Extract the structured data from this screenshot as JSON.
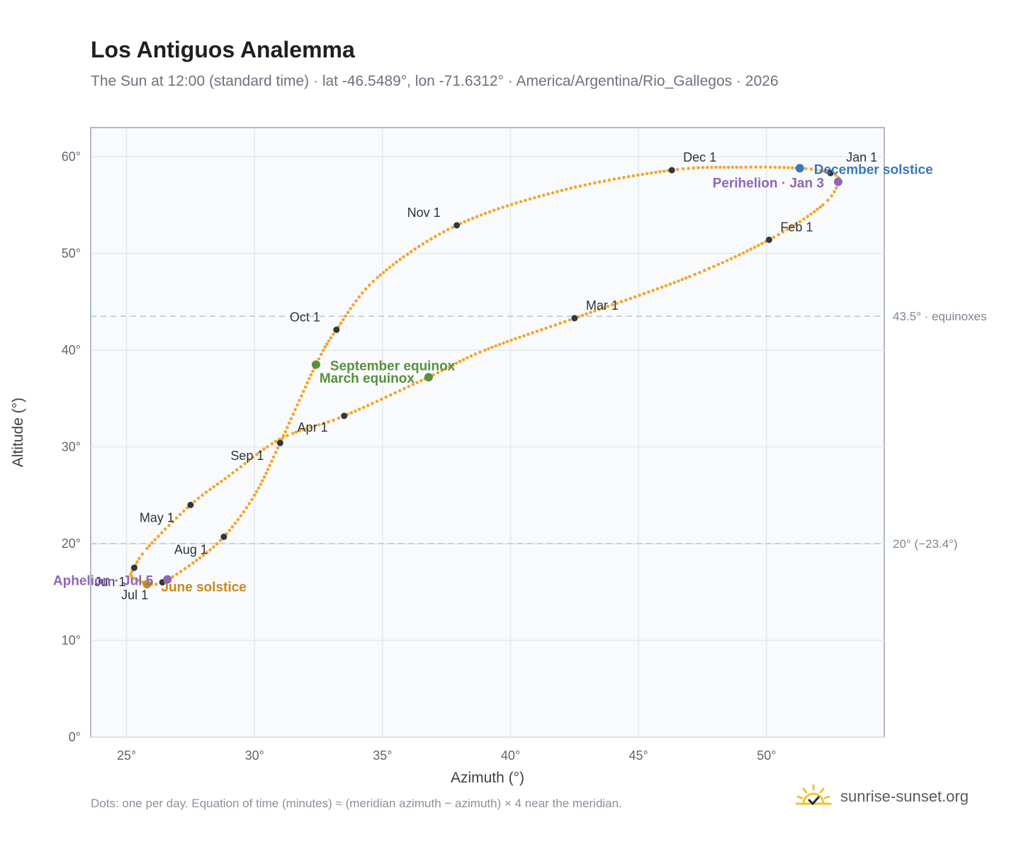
{
  "title": "Los Antiguos Analemma",
  "subtitle": "The Sun at 12:00 (standard time) · lat -46.5489°, lon -71.6312° · America/Argentina/Rio_Gallegos · 2026",
  "footnote": "Dots: one per day. Equation of time (minutes) ≈ (meridian azimuth − azimuth) × 4 near the meridian.",
  "brand": {
    "name": "sunrise-sunset.org",
    "icon": "sun-check-icon"
  },
  "colors": {
    "curve": "#f0a830",
    "month_point": "#2f3640",
    "equinox": "#5a8f3c",
    "december_solstice": "#3a78b8",
    "june_solstice": "#c98a1b",
    "perihelion_aphelion": "#8e67b8",
    "plot_bg": "#f8fafc",
    "grid": "#e3e8ee",
    "reference_line": "#b9c6d2"
  },
  "chart_data": {
    "type": "scatter",
    "xlabel": "Azimuth (°)",
    "ylabel": "Altitude (°)",
    "xlim": [
      23.6,
      54.6
    ],
    "ylim": [
      0,
      63
    ],
    "xticks": [
      25,
      30,
      35,
      40,
      45,
      50
    ],
    "yticks": [
      0,
      10,
      20,
      30,
      40,
      50,
      60
    ],
    "tick_suffix": "°",
    "grid": true,
    "reference_lines": [
      {
        "y": 43.5,
        "label": "43.5° · equinoxes"
      },
      {
        "y": 20,
        "label": "20° (−23.4°)"
      }
    ],
    "series": [
      {
        "x": [
          52.5,
          52.8,
          52.2,
          50.1,
          47.0,
          42.5,
          39.0,
          36.8,
          33.5,
          31.5,
          30.5,
          29.0,
          27.5,
          25.8,
          25.3,
          25.2,
          25.8,
          26.4,
          27.6,
          28.8,
          30.0,
          31.0,
          32.4,
          33.2,
          34.8,
          37.9,
          42.0,
          46.3,
          49.0,
          51.3,
          52.5
        ],
        "y": [
          58.3,
          57.4,
          55.0,
          51.4,
          47.6,
          43.3,
          40.0,
          37.2,
          33.2,
          31.4,
          30.0,
          27.0,
          24.0,
          19.5,
          17.5,
          16.6,
          15.9,
          16.0,
          18.0,
          20.7,
          25.0,
          30.4,
          38.5,
          42.1,
          47.5,
          52.9,
          56.5,
          58.6,
          58.9,
          58.8,
          58.3
        ]
      }
    ],
    "month_points": [
      {
        "label": "Jan 1",
        "x": 52.5,
        "y": 58.3
      },
      {
        "label": "Feb 1",
        "x": 50.1,
        "y": 51.4
      },
      {
        "label": "Mar 1",
        "x": 42.5,
        "y": 43.3
      },
      {
        "label": "Apr 1",
        "x": 33.5,
        "y": 33.2
      },
      {
        "label": "May 1",
        "x": 27.5,
        "y": 24.0
      },
      {
        "label": "Jun 1",
        "x": 25.3,
        "y": 17.5
      },
      {
        "label": "Jul 1",
        "x": 26.4,
        "y": 16.0
      },
      {
        "label": "Aug 1",
        "x": 28.8,
        "y": 20.7
      },
      {
        "label": "Sep 1",
        "x": 31.0,
        "y": 30.4
      },
      {
        "label": "Oct 1",
        "x": 33.2,
        "y": 42.1
      },
      {
        "label": "Nov 1",
        "x": 37.9,
        "y": 52.9
      },
      {
        "label": "Dec 1",
        "x": 46.3,
        "y": 58.6
      }
    ],
    "events": [
      {
        "label": "December solstice",
        "x": 51.3,
        "y": 58.8,
        "color": "#3a78b8"
      },
      {
        "label": "Perihelion · Jan 3",
        "x": 52.8,
        "y": 57.4,
        "color": "#8e67b8"
      },
      {
        "label": "September equinox",
        "x": 32.4,
        "y": 38.5,
        "color": "#5a8f3c"
      },
      {
        "label": "March equinox",
        "x": 36.8,
        "y": 37.2,
        "color": "#5a8f3c"
      },
      {
        "label": "June solstice",
        "x": 25.8,
        "y": 15.8,
        "color": "#c98a1b"
      },
      {
        "label": "Aphelion · Jul 5",
        "x": 26.6,
        "y": 16.3,
        "color": "#8e67b8"
      }
    ]
  }
}
